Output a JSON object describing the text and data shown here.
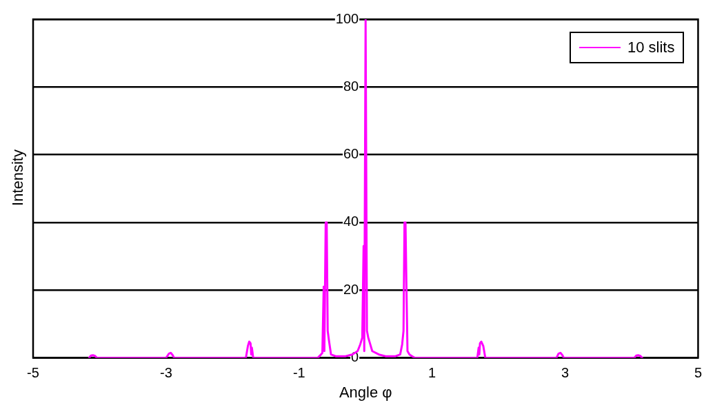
{
  "chart_data": {
    "type": "line",
    "xlabel": "Angle φ",
    "ylabel": "Intensity",
    "xlim": [
      -5,
      5
    ],
    "xticks": [
      -5,
      -3,
      -1,
      1,
      3,
      5
    ],
    "ylim": [
      0,
      100
    ],
    "yticks": [
      0,
      20,
      40,
      60,
      80,
      100
    ],
    "grid": "y",
    "legend": "top right",
    "marker": "none",
    "line_style": "solid",
    "series": [
      {
        "name": "10 slits",
        "color": "#ff00ff",
        "x": [
          -4.16,
          -4.13,
          -4.1,
          -4.07,
          -4.04,
          -3.0,
          -2.96,
          -2.93,
          -2.9,
          -2.88,
          -1.8,
          -1.77,
          -1.75,
          -1.73,
          -1.72,
          -1.71,
          -1.69,
          -0.72,
          -0.68,
          -0.65,
          -0.63,
          -0.62,
          -0.6,
          -0.585,
          -0.57,
          -0.55,
          -0.52,
          -0.45,
          -0.3,
          -0.2,
          -0.12,
          -0.08,
          -0.05,
          -0.03,
          -0.02,
          0,
          0.02,
          0.04,
          0.07,
          0.1,
          0.2,
          0.3,
          0.45,
          0.52,
          0.55,
          0.57,
          0.585,
          0.6,
          0.615,
          0.63,
          0.66,
          0.7,
          0.74,
          1.68,
          1.7,
          1.71,
          1.72,
          1.74,
          1.77,
          1.8,
          2.87,
          2.9,
          2.93,
          2.96,
          2.98,
          4.04,
          4.07,
          4.1,
          4.13,
          4.16
        ],
        "values": [
          0,
          0.7,
          0.8,
          0.6,
          0,
          0,
          1.2,
          1.5,
          0.8,
          0,
          0,
          3.5,
          4.8,
          4.3,
          1,
          3,
          0,
          0,
          0.8,
          1.5,
          21,
          2,
          40,
          40,
          8,
          5,
          1,
          0.5,
          0.5,
          1,
          2,
          4,
          6,
          33,
          2,
          100,
          8,
          6,
          4,
          2,
          1,
          0.5,
          0.5,
          1,
          4,
          8,
          40,
          40,
          20,
          2,
          1,
          0.5,
          0,
          0,
          3,
          1,
          4.3,
          4.8,
          3.5,
          0,
          0,
          1.2,
          1.5,
          0.8,
          0,
          0,
          0.7,
          0.8,
          0.6,
          0
        ]
      }
    ]
  }
}
